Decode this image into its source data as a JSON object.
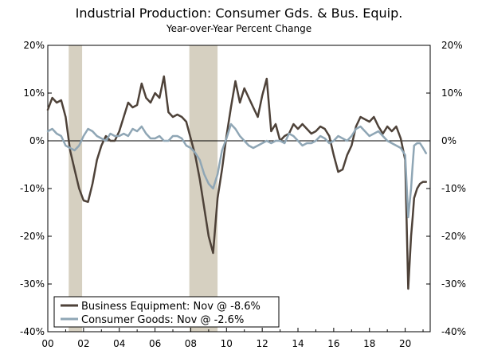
{
  "chart_data": {
    "type": "line",
    "title": "Industrial Production: Consumer Gds. & Bus. Equip.",
    "subtitle": "Year-over-Year Percent Change",
    "xlabel": "",
    "ylabel": "",
    "x_range": [
      2000.0,
      2021.4
    ],
    "ylim": [
      -40,
      20
    ],
    "y_ticks": [
      20,
      10,
      0,
      -10,
      -20,
      -30,
      -40
    ],
    "y_tick_labels": [
      "20%",
      "10%",
      "0%",
      "-10%",
      "-20%",
      "-30%",
      "-40%"
    ],
    "x_ticks": [
      2000,
      2002,
      2004,
      2006,
      2008,
      2010,
      2012,
      2014,
      2016,
      2018,
      2020
    ],
    "x_tick_labels": [
      "00",
      "02",
      "04",
      "06",
      "08",
      "10",
      "12",
      "14",
      "16",
      "18",
      "20"
    ],
    "grid": false,
    "zero_line": true,
    "y_axis_both_sides": true,
    "legend_position": "bottom-left",
    "recessions": [
      [
        2001.17,
        2001.92
      ],
      [
        2007.92,
        2009.5
      ]
    ],
    "recession_color": "#d6d0c1",
    "series": [
      {
        "name": "Business Equipment: Nov @ -8.6%",
        "color": "#4e4239",
        "x": [
          2000.0,
          2000.25,
          2000.5,
          2000.75,
          2001.0,
          2001.25,
          2001.5,
          2001.75,
          2002.0,
          2002.25,
          2002.5,
          2002.75,
          2003.0,
          2003.25,
          2003.5,
          2003.75,
          2004.0,
          2004.25,
          2004.5,
          2004.75,
          2005.0,
          2005.25,
          2005.5,
          2005.75,
          2006.0,
          2006.25,
          2006.5,
          2006.75,
          2007.0,
          2007.25,
          2007.5,
          2007.75,
          2008.0,
          2008.25,
          2008.5,
          2008.75,
          2009.0,
          2009.25,
          2009.5,
          2009.75,
          2010.0,
          2010.25,
          2010.5,
          2010.75,
          2011.0,
          2011.25,
          2011.5,
          2011.75,
          2012.0,
          2012.25,
          2012.5,
          2012.75,
          2013.0,
          2013.25,
          2013.5,
          2013.75,
          2014.0,
          2014.25,
          2014.5,
          2014.75,
          2015.0,
          2015.25,
          2015.5,
          2015.75,
          2016.0,
          2016.25,
          2016.5,
          2016.75,
          2017.0,
          2017.25,
          2017.5,
          2017.75,
          2018.0,
          2018.25,
          2018.5,
          2018.75,
          2019.0,
          2019.25,
          2019.5,
          2019.75,
          2020.0,
          2020.17,
          2020.33,
          2020.42,
          2020.5,
          2020.67,
          2020.83,
          2021.0,
          2021.17
        ],
        "values": [
          6.5,
          9.0,
          8.0,
          8.5,
          5.0,
          -2.0,
          -6.0,
          -10.0,
          -12.5,
          -12.8,
          -9.0,
          -4.0,
          -1.0,
          1.0,
          0.0,
          0.0,
          2.0,
          5.0,
          8.0,
          7.0,
          7.5,
          12.0,
          9.0,
          8.0,
          10.0,
          9.0,
          13.5,
          6.0,
          5.0,
          5.5,
          5.0,
          4.0,
          0.5,
          -3.0,
          -8.0,
          -14.0,
          -20.0,
          -23.5,
          -12.0,
          -6.0,
          1.0,
          7.0,
          12.5,
          8.0,
          11.0,
          9.0,
          7.0,
          5.0,
          9.5,
          13.0,
          2.0,
          3.5,
          0.0,
          1.0,
          1.5,
          3.5,
          2.5,
          3.5,
          2.5,
          1.5,
          2.0,
          3.0,
          2.5,
          1.0,
          -3.0,
          -6.5,
          -6.0,
          -3.0,
          -1.0,
          3.0,
          5.0,
          4.5,
          4.0,
          5.0,
          3.0,
          1.5,
          3.0,
          2.0,
          3.0,
          0.5,
          -4.0,
          -31.0,
          -20.0,
          -16.0,
          -12.0,
          -10.0,
          -9.0,
          -8.6,
          -8.6
        ]
      },
      {
        "name": "Consumer Goods: Nov @ -2.6%",
        "color": "#8fa6b5",
        "x": [
          2000.0,
          2000.25,
          2000.5,
          2000.75,
          2001.0,
          2001.25,
          2001.5,
          2001.75,
          2002.0,
          2002.25,
          2002.5,
          2002.75,
          2003.0,
          2003.25,
          2003.5,
          2003.75,
          2004.0,
          2004.25,
          2004.5,
          2004.75,
          2005.0,
          2005.25,
          2005.5,
          2005.75,
          2006.0,
          2006.25,
          2006.5,
          2006.75,
          2007.0,
          2007.25,
          2007.5,
          2007.75,
          2008.0,
          2008.25,
          2008.5,
          2008.75,
          2009.0,
          2009.25,
          2009.5,
          2009.75,
          2010.0,
          2010.25,
          2010.5,
          2010.75,
          2011.0,
          2011.25,
          2011.5,
          2011.75,
          2012.0,
          2012.25,
          2012.5,
          2012.75,
          2013.0,
          2013.25,
          2013.5,
          2013.75,
          2014.0,
          2014.25,
          2014.5,
          2014.75,
          2015.0,
          2015.25,
          2015.5,
          2015.75,
          2016.0,
          2016.25,
          2016.5,
          2016.75,
          2017.0,
          2017.25,
          2017.5,
          2017.75,
          2018.0,
          2018.25,
          2018.5,
          2018.75,
          2019.0,
          2019.25,
          2019.5,
          2019.75,
          2020.0,
          2020.17,
          2020.33,
          2020.42,
          2020.5,
          2020.67,
          2020.83,
          2021.0,
          2021.17
        ],
        "values": [
          2.0,
          2.5,
          1.5,
          1.0,
          -1.0,
          -1.5,
          -2.0,
          -1.0,
          1.0,
          2.5,
          2.0,
          1.0,
          0.5,
          0.0,
          1.5,
          1.0,
          1.0,
          1.5,
          1.0,
          2.5,
          2.0,
          3.0,
          1.5,
          0.5,
          0.5,
          1.0,
          0.0,
          0.0,
          1.0,
          1.0,
          0.5,
          -1.0,
          -1.5,
          -2.5,
          -4.0,
          -7.0,
          -9.0,
          -10.0,
          -7.0,
          -2.0,
          0.5,
          3.5,
          2.5,
          1.0,
          0.0,
          -1.0,
          -1.5,
          -1.0,
          -0.5,
          0.0,
          -0.5,
          0.0,
          0.0,
          -0.5,
          1.5,
          1.0,
          0.0,
          -1.0,
          -0.5,
          -0.5,
          0.0,
          1.0,
          0.5,
          -0.5,
          0.0,
          1.0,
          0.5,
          0.0,
          1.0,
          2.5,
          3.0,
          2.0,
          1.0,
          1.5,
          2.0,
          1.0,
          0.0,
          -0.5,
          -1.0,
          -1.5,
          -3.0,
          -16.0,
          -10.0,
          -5.0,
          -1.0,
          -0.5,
          -0.5,
          -1.5,
          -2.6
        ]
      }
    ]
  }
}
